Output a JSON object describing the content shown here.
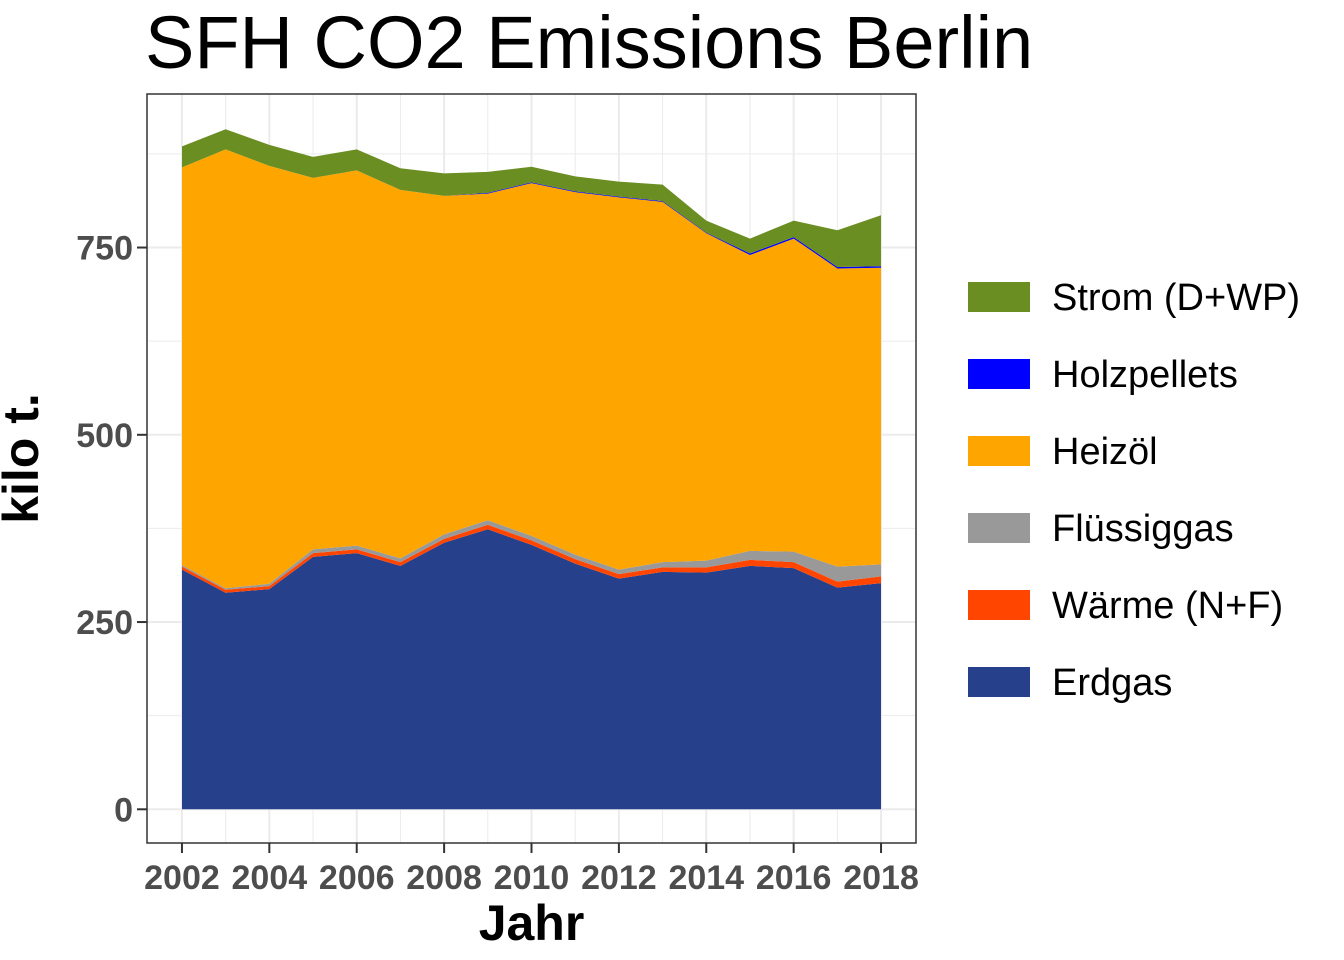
{
  "chart_data": {
    "type": "area",
    "title": "SFH CO2 Emissions Berlin",
    "xlabel": "Jahr",
    "ylabel": "kilo t.",
    "x": [
      2002,
      2003,
      2004,
      2005,
      2006,
      2007,
      2008,
      2009,
      2010,
      2011,
      2012,
      2013,
      2014,
      2015,
      2016,
      2017,
      2018
    ],
    "xticks": [
      2002,
      2004,
      2006,
      2008,
      2010,
      2012,
      2014,
      2016,
      2018
    ],
    "yticks": [
      0,
      250,
      500,
      750
    ],
    "xlim": [
      2001.2,
      2018.8
    ],
    "ylim": [
      -45,
      955
    ],
    "stacked": true,
    "grid": true,
    "legend_position": "right",
    "series": [
      {
        "name": "Erdgas",
        "color": "#26408B",
        "values": [
          320,
          289,
          294,
          337,
          342,
          325,
          356,
          374,
          353,
          328,
          308,
          317,
          316,
          325,
          322,
          296,
          302
        ]
      },
      {
        "name": "Wärme (N+F)",
        "color": "#FF4500",
        "values": [
          4,
          4,
          4,
          5,
          5,
          5,
          5,
          6,
          6,
          6,
          6,
          6,
          7,
          8,
          8,
          8,
          9
        ]
      },
      {
        "name": "Flüssiggas",
        "color": "#999999",
        "values": [
          2,
          2,
          3,
          5,
          5,
          5,
          6,
          6,
          6,
          6,
          6,
          7,
          9,
          12,
          14,
          20,
          16
        ]
      },
      {
        "name": "Heizöl",
        "color": "#FFA500",
        "values": [
          531,
          586,
          558,
          496,
          501,
          492,
          452,
          436,
          471,
          484,
          497,
          481,
          437,
          395,
          418,
          398,
          396
        ]
      },
      {
        "name": "Holzpellets",
        "color": "#0000FF",
        "values": [
          0,
          0,
          0,
          0,
          0,
          0,
          0,
          1,
          1,
          1,
          1,
          1,
          1,
          2,
          2,
          2,
          2
        ]
      },
      {
        "name": "Strom (D+WP)",
        "color": "#6B8E23",
        "values": [
          28,
          27,
          28,
          28,
          28,
          29,
          30,
          28,
          21,
          20,
          20,
          22,
          16,
          20,
          22,
          49,
          68
        ]
      }
    ]
  }
}
